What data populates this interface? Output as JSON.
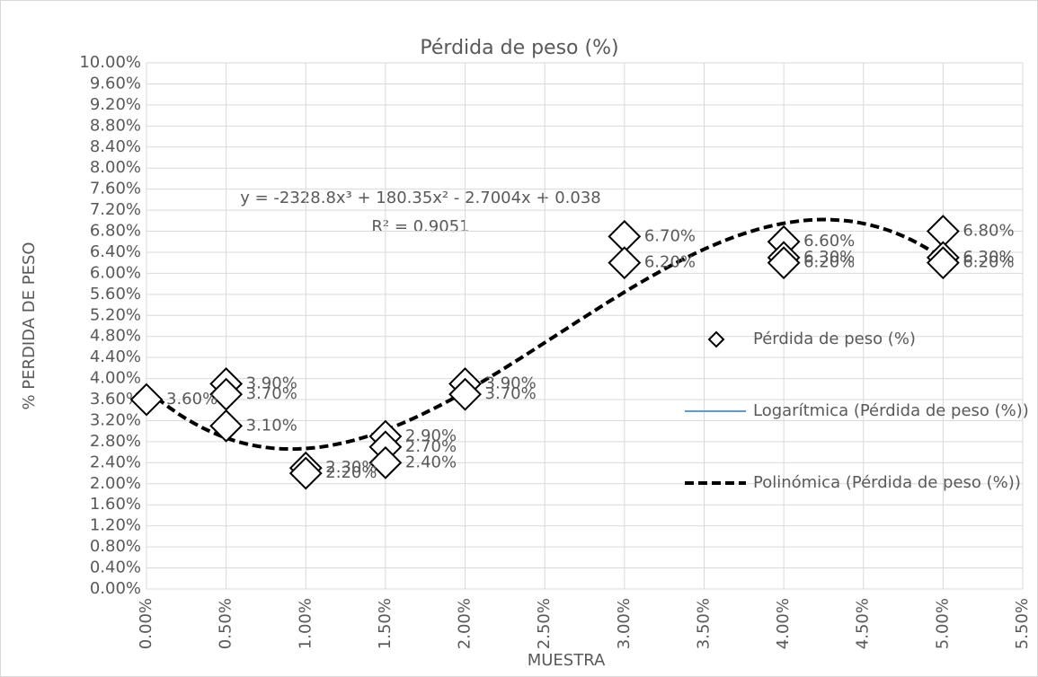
{
  "chart_data": {
    "type": "scatter",
    "title": "Pérdida de peso (%)",
    "x_label": "MUESTRA",
    "y_label": "% PERDIDA DE PESO",
    "xlim": [
      0,
      5.5
    ],
    "ylim": [
      0,
      10
    ],
    "xticks": [
      {
        "value": 0,
        "label": "0.00%"
      },
      {
        "value": 0.5,
        "label": "0.50%"
      },
      {
        "value": 1,
        "label": "1.00%"
      },
      {
        "value": 1.5,
        "label": "1.50%"
      },
      {
        "value": 2,
        "label": "2.00%"
      },
      {
        "value": 2.5,
        "label": "2.50%"
      },
      {
        "value": 3,
        "label": "3.00%"
      },
      {
        "value": 3.5,
        "label": "3.50%"
      },
      {
        "value": 4,
        "label": "4.00%"
      },
      {
        "value": 4.5,
        "label": "4.50%"
      },
      {
        "value": 5,
        "label": "5.00%"
      },
      {
        "value": 5.5,
        "label": "5.50%"
      }
    ],
    "yticks": [
      {
        "value": 0,
        "label": "0.00%"
      },
      {
        "value": 0.4,
        "label": "0.40%"
      },
      {
        "value": 0.8,
        "label": "0.80%"
      },
      {
        "value": 1.2,
        "label": "1.20%"
      },
      {
        "value": 1.6,
        "label": "1.60%"
      },
      {
        "value": 2,
        "label": "2.00%"
      },
      {
        "value": 2.4,
        "label": "2.40%"
      },
      {
        "value": 2.8,
        "label": "2.80%"
      },
      {
        "value": 3.2,
        "label": "3.20%"
      },
      {
        "value": 3.6,
        "label": "3.60%"
      },
      {
        "value": 4,
        "label": "4.00%"
      },
      {
        "value": 4.4,
        "label": "4.40%"
      },
      {
        "value": 4.8,
        "label": "4.80%"
      },
      {
        "value": 5.2,
        "label": "5.20%"
      },
      {
        "value": 5.6,
        "label": "5.60%"
      },
      {
        "value": 6,
        "label": "6.00%"
      },
      {
        "value": 6.4,
        "label": "6.40%"
      },
      {
        "value": 6.8,
        "label": "6.80%"
      },
      {
        "value": 7.2,
        "label": "7.20%"
      },
      {
        "value": 7.6,
        "label": "7.60%"
      },
      {
        "value": 8,
        "label": "8.00%"
      },
      {
        "value": 8.4,
        "label": "8.40%"
      },
      {
        "value": 8.8,
        "label": "8.80%"
      },
      {
        "value": 9.2,
        "label": "9.20%"
      },
      {
        "value": 9.6,
        "label": "9.60%"
      },
      {
        "value": 10,
        "label": "10.00%"
      }
    ],
    "grid": true,
    "legend": "right",
    "series": [
      {
        "name": "Pérdida de peso (%)",
        "color": "#000000",
        "x": [
          0,
          0.5,
          0.5,
          0.5,
          1,
          1,
          1.5,
          1.5,
          1.5,
          2,
          2,
          3,
          3,
          4,
          4,
          4,
          5,
          5,
          5
        ],
        "values": [
          3.6,
          3.9,
          3.7,
          3.1,
          2.3,
          2.2,
          2.9,
          2.7,
          2.4,
          3.9,
          3.7,
          6.7,
          6.2,
          6.6,
          6.3,
          6.2,
          6.8,
          6.3,
          6.2
        ],
        "value_labels": [
          "3.60%",
          "3.90%",
          "3.70%",
          "3.10%",
          "2.30%",
          "2.20%",
          "2.90%",
          "2.70%",
          "2.40%",
          "3.90%",
          "3.70%",
          "6.70%",
          "6.20%",
          "6.60%",
          "6.30%",
          "6.20%",
          "6.80%",
          "6.30%",
          "6.20%"
        ]
      },
      {
        "name": "Logarítmica (Pérdida de peso (%))",
        "color": "#5b9bd5"
      },
      {
        "name": "Polinómica (Pérdida de peso (%))",
        "color": "#000000",
        "equation": "y = -2328.8x³ + 180.35x² - 2.7004x + 0.038",
        "r_squared": "R² = 0.9051",
        "coefficients": [
          -2328.8,
          180.35,
          -2.7004,
          0.038
        ]
      }
    ]
  }
}
